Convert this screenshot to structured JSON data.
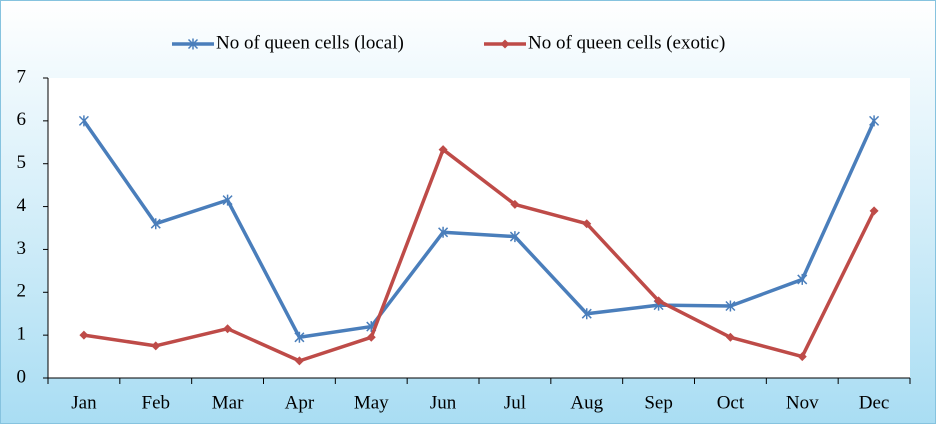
{
  "chart_data": {
    "type": "line",
    "categories": [
      "Jan",
      "Feb",
      "Mar",
      "Apr",
      "May",
      "Jun",
      "Jul",
      "Aug",
      "Sep",
      "Oct",
      "Nov",
      "Dec"
    ],
    "series": [
      {
        "name": "No of queen cells (local)",
        "color": "#4a7ebb",
        "marker": "star",
        "values": [
          6,
          3.6,
          4.15,
          0.95,
          1.2,
          3.4,
          3.3,
          1.5,
          1.7,
          1.68,
          2.3,
          6
        ]
      },
      {
        "name": "No of queen cells (exotic)",
        "color": "#be4b48",
        "marker": "diamond",
        "values": [
          1,
          0.75,
          1.15,
          0.4,
          0.95,
          5.33,
          4.05,
          3.6,
          1.8,
          0.95,
          0.5,
          3.9
        ]
      }
    ],
    "ylim": [
      0,
      7
    ],
    "yticks": [
      0,
      1,
      2,
      3,
      4,
      5,
      6,
      7
    ],
    "grid": false,
    "legend": "top"
  }
}
